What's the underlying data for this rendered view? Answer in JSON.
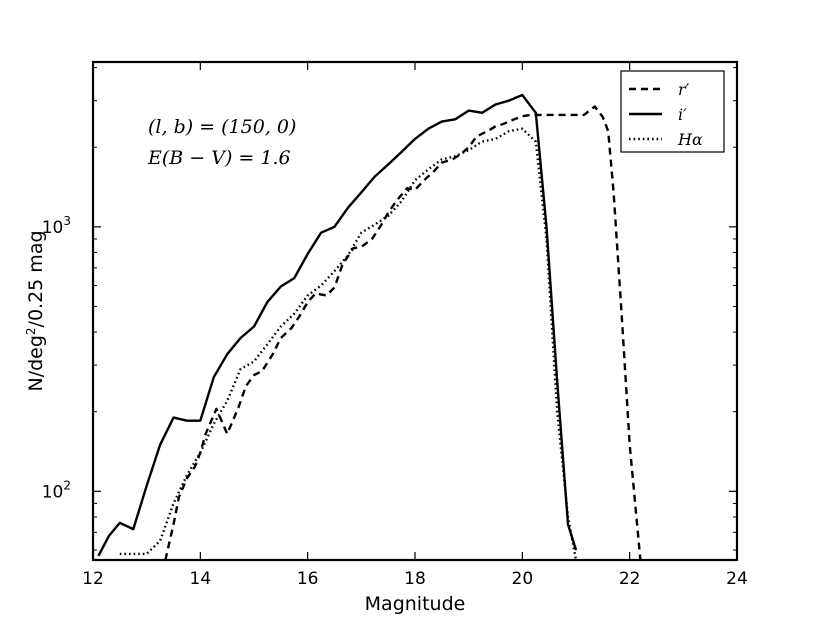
{
  "chart_data": {
    "type": "line",
    "title": "",
    "xlabel": "Magnitude",
    "ylabel": "N/deg²/0.25 mag",
    "ylabel_main": "N/deg",
    "ylabel_sup": "2",
    "ylabel_rest": "/0.25 mag",
    "xlim": [
      12,
      24
    ],
    "ylim": [
      55,
      4200
    ],
    "yscale": "log",
    "grid": false,
    "legend_position": "top-right",
    "x_ticks": [
      12,
      14,
      16,
      18,
      20,
      22,
      24
    ],
    "y_ticks": [
      100,
      1000
    ],
    "y_tick_base": "10",
    "y_tick_exps": [
      "2",
      "3"
    ],
    "annotations": [
      "(l, b) = (150, 0)",
      "E(B − V) = 1.6"
    ],
    "series": [
      {
        "name": "r′",
        "style": "dashed",
        "x": [
          13.35,
          13.5,
          13.6,
          13.75,
          13.9,
          14.0,
          14.1,
          14.3,
          14.5,
          14.7,
          14.85,
          15.0,
          15.15,
          15.35,
          15.5,
          15.7,
          15.85,
          16.0,
          16.15,
          16.35,
          16.5,
          16.65,
          16.85,
          17.0,
          17.2,
          17.35,
          17.5,
          17.65,
          17.85,
          18.0,
          18.2,
          18.35,
          18.5,
          18.7,
          18.85,
          19.0,
          19.15,
          19.35,
          19.5,
          19.65,
          19.85,
          20.0,
          20.15,
          20.35,
          20.5,
          20.65,
          20.85,
          21.0,
          21.15,
          21.35,
          21.5,
          21.6,
          21.7,
          21.85,
          22.0,
          22.2
        ],
        "values": [
          55,
          75,
          95,
          112,
          124,
          140,
          165,
          205,
          165,
          205,
          250,
          275,
          285,
          330,
          380,
          415,
          460,
          520,
          560,
          550,
          590,
          720,
          830,
          840,
          900,
          1000,
          1130,
          1250,
          1400,
          1380,
          1520,
          1620,
          1750,
          1800,
          1880,
          2000,
          2200,
          2300,
          2400,
          2450,
          2550,
          2620,
          2650,
          2650,
          2650,
          2650,
          2650,
          2650,
          2650,
          2850,
          2600,
          2300,
          1350,
          470,
          150,
          55
        ]
      },
      {
        "name": "i′",
        "style": "solid",
        "x": [
          12.1,
          12.3,
          12.5,
          12.75,
          13.0,
          13.25,
          13.5,
          13.75,
          14.0,
          14.25,
          14.5,
          14.75,
          15.0,
          15.25,
          15.5,
          15.75,
          16.0,
          16.25,
          16.5,
          16.75,
          17.0,
          17.25,
          17.5,
          17.75,
          18.0,
          18.25,
          18.5,
          18.75,
          19.0,
          19.25,
          19.5,
          19.75,
          20.0,
          20.25,
          20.45,
          20.65,
          20.85,
          21.0
        ],
        "values": [
          57,
          68,
          76,
          72,
          105,
          150,
          190,
          185,
          185,
          270,
          330,
          380,
          420,
          520,
          595,
          640,
          790,
          950,
          1000,
          1180,
          1350,
          1550,
          1720,
          1920,
          2150,
          2350,
          2500,
          2550,
          2750,
          2700,
          2900,
          3000,
          3150,
          2700,
          1000,
          260,
          75,
          60
        ]
      },
      {
        "name": "Hα",
        "style": "dotted",
        "x": [
          12.5,
          12.75,
          13.0,
          13.25,
          13.5,
          13.75,
          14.0,
          14.25,
          14.5,
          14.75,
          15.0,
          15.25,
          15.5,
          15.75,
          16.0,
          16.25,
          16.5,
          16.75,
          17.0,
          17.25,
          17.5,
          17.75,
          18.0,
          18.25,
          18.5,
          18.75,
          19.0,
          19.25,
          19.5,
          19.75,
          20.0,
          20.25,
          20.45,
          20.65,
          20.85,
          21.0
        ],
        "values": [
          58,
          58,
          58,
          65,
          90,
          115,
          140,
          180,
          220,
          290,
          310,
          360,
          420,
          470,
          550,
          600,
          680,
          780,
          950,
          1020,
          1100,
          1250,
          1500,
          1650,
          1800,
          1850,
          1950,
          2100,
          2150,
          2300,
          2350,
          2100,
          900,
          200,
          80,
          55
        ]
      }
    ]
  }
}
